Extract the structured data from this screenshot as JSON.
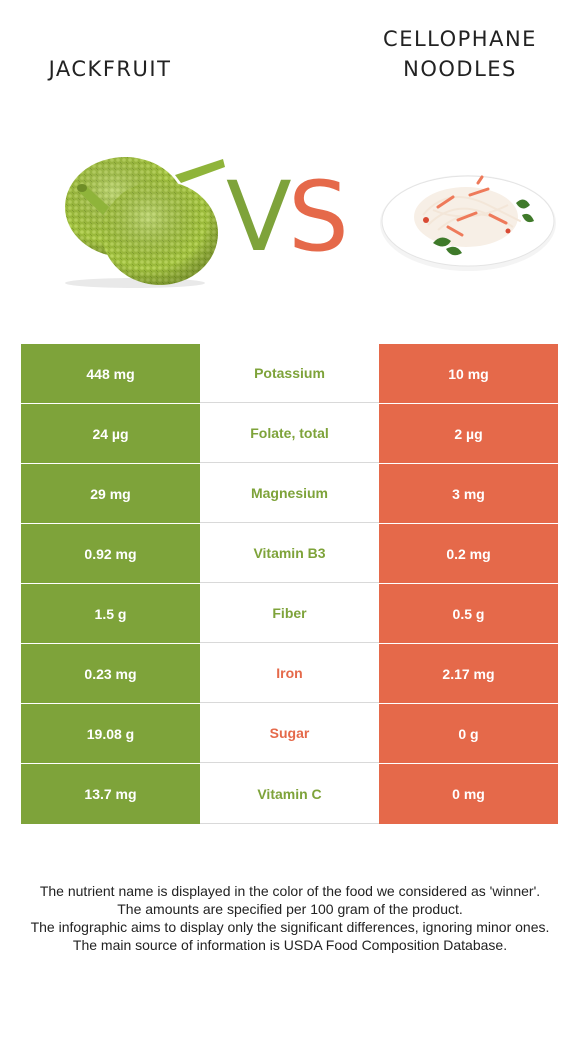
{
  "header": {
    "left_food": "JACKFRUIT",
    "right_food_line1": "CELLOPHANE",
    "right_food_line2": "NOODLES"
  },
  "colors": {
    "left_food": "#7ea33a",
    "right_food": "#e5694a"
  },
  "vs_label": "VS",
  "rows": [
    {
      "left": "448 mg",
      "nutrient": "Potassium",
      "right": "10 mg",
      "winner": "left"
    },
    {
      "left": "24 µg",
      "nutrient": "Folate, total",
      "right": "2 µg",
      "winner": "left"
    },
    {
      "left": "29 mg",
      "nutrient": "Magnesium",
      "right": "3 mg",
      "winner": "left"
    },
    {
      "left": "0.92 mg",
      "nutrient": "Vitamin B3",
      "right": "0.2 mg",
      "winner": "left"
    },
    {
      "left": "1.5 g",
      "nutrient": "Fiber",
      "right": "0.5 g",
      "winner": "left"
    },
    {
      "left": "0.23 mg",
      "nutrient": "Iron",
      "right": "2.17 mg",
      "winner": "right"
    },
    {
      "left": "19.08 g",
      "nutrient": "Sugar",
      "right": "0 g",
      "winner": "right"
    },
    {
      "left": "13.7 mg",
      "nutrient": "Vitamin C",
      "right": "0 mg",
      "winner": "left"
    }
  ],
  "footnote": {
    "line1": "The nutrient name is displayed in the color of the food we considered as 'winner'.",
    "line2": "The amounts are specified per 100 gram of the product.",
    "line3": "The infographic aims to display only the significant differences, ignoring minor ones.",
    "line4": "The main source of information is USDA Food Composition Database."
  },
  "icons": {
    "left_image": "jackfruit-image",
    "right_image": "cellophane-noodles-image"
  }
}
